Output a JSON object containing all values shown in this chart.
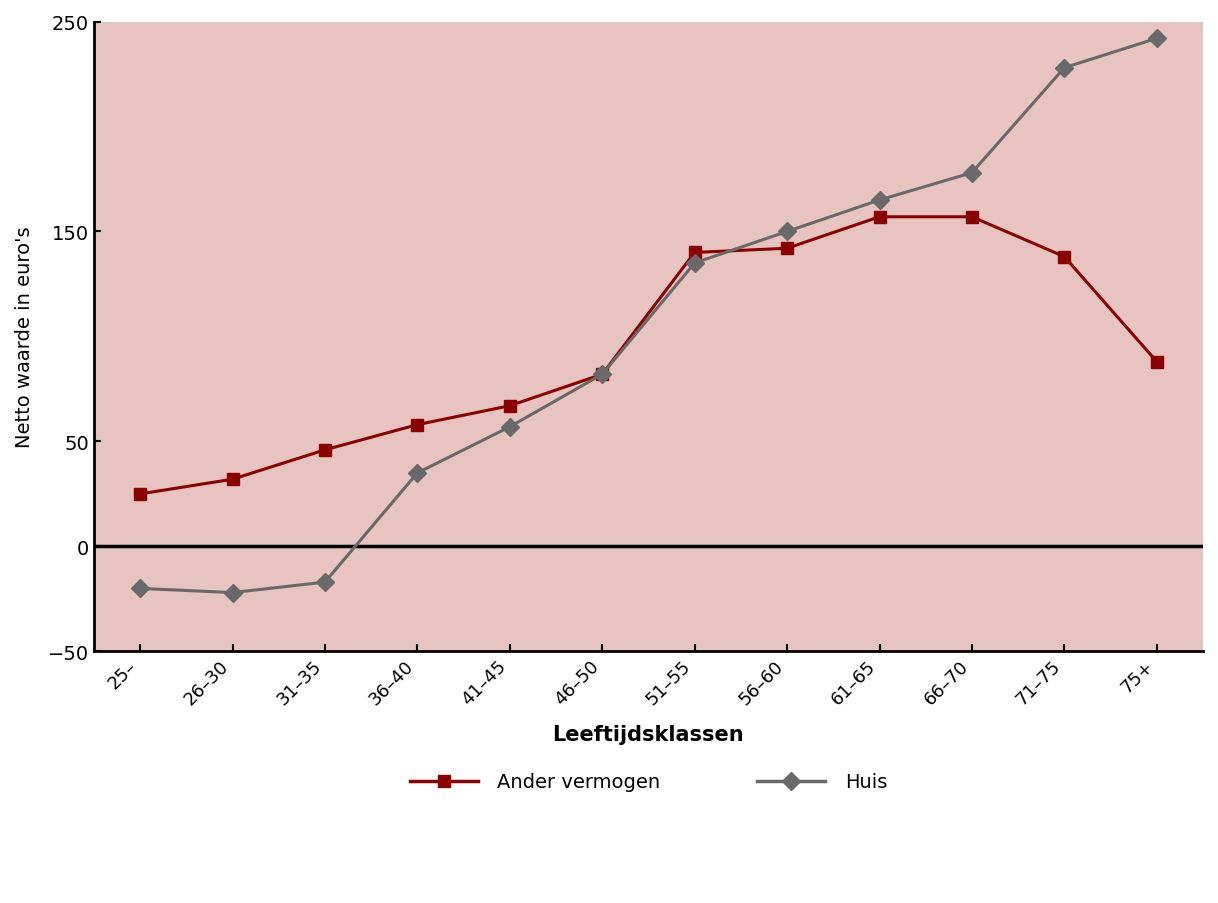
{
  "categories": [
    "25–",
    "26–30",
    "31–35",
    "36–40",
    "41–45",
    "46–50",
    "51–55",
    "56–60",
    "61–65",
    "66–70",
    "71–75",
    "75+"
  ],
  "ander_vermogen": [
    25,
    32,
    46,
    58,
    67,
    82,
    140,
    142,
    157,
    157,
    138,
    88
  ],
  "huis": [
    -20,
    -22,
    -17,
    35,
    57,
    82,
    135,
    150,
    165,
    178,
    228,
    242
  ],
  "ander_color": "#8B0000",
  "huis_color": "#696969",
  "background_color": "#E8C4C0",
  "ylabel": "Netto waarde in euro's",
  "xlabel": "Leeftijdsklassen",
  "ylim": [
    -50,
    250
  ],
  "yticks": [
    -50,
    0,
    50,
    150,
    250
  ],
  "ytick_labels": [
    "−50",
    "0",
    "50",
    "150",
    "250"
  ],
  "legend_ander": "Ander vermogen",
  "legend_huis": "Huis",
  "zero_line_color": "#000000",
  "spine_color": "#000000",
  "figsize": [
    12.18,
    9.04
  ],
  "dpi": 100
}
